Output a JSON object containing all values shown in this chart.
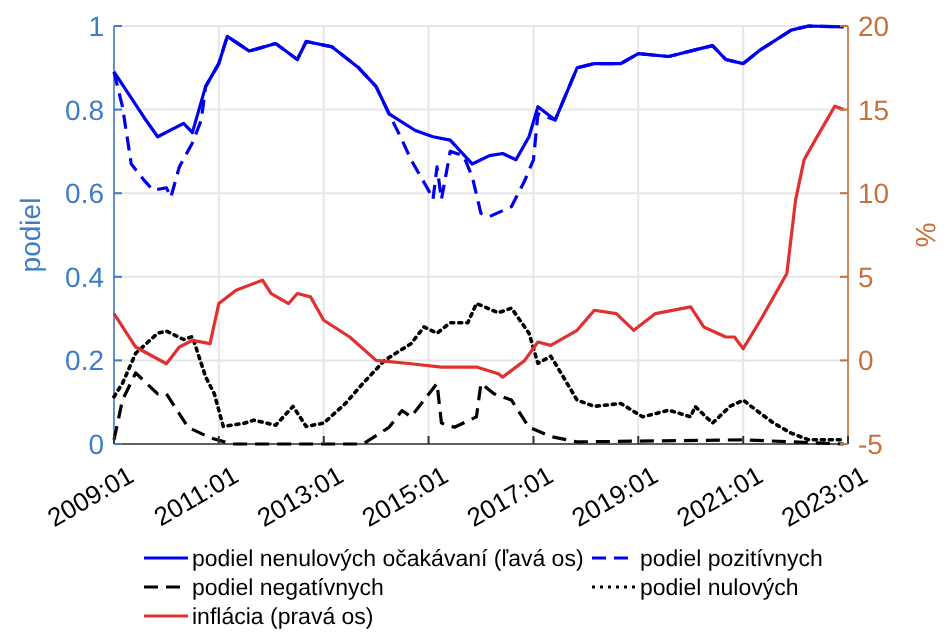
{
  "chart_data": {
    "type": "line",
    "ylabel": "podiel",
    "y2label": "%",
    "xlim": [
      "2009-01",
      "2023-01"
    ],
    "xticks": [
      {
        "value": "2009-01",
        "label": "2009:01"
      },
      {
        "value": "2011-01",
        "label": "2011:01"
      },
      {
        "value": "2013-01",
        "label": "2013:01"
      },
      {
        "value": "2015-01",
        "label": "2015:01"
      },
      {
        "value": "2017-01",
        "label": "2017:01"
      },
      {
        "value": "2019-01",
        "label": "2019:01"
      },
      {
        "value": "2021-01",
        "label": "2021:01"
      },
      {
        "value": "2023-01",
        "label": "2023:01"
      }
    ],
    "ylim": [
      0,
      1
    ],
    "yticks": [
      0,
      0.2,
      0.4,
      0.6,
      0.8,
      1
    ],
    "y2lim": [
      -5,
      20
    ],
    "y2ticks": [
      -5,
      0,
      5,
      10,
      15,
      20
    ],
    "grid": true,
    "legend": "bottom",
    "series": [
      {
        "name": "podiel nenulových očakávaní (ľavá os)",
        "color": "#0000ee",
        "line_style": "solid",
        "x": [
          "2009-01",
          "2009-08",
          "2009-11",
          "2010-05",
          "2010-07",
          "2010-10",
          "2011-01",
          "2011-03",
          "2011-08",
          "2012-02",
          "2012-07",
          "2012-09",
          "2013-03",
          "2013-09",
          "2014-01",
          "2014-04",
          "2014-10",
          "2015-02",
          "2015-06",
          "2015-11",
          "2016-03",
          "2016-06",
          "2016-09",
          "2016-12",
          "2017-02",
          "2017-06",
          "2017-11",
          "2018-03",
          "2018-09",
          "2019-01",
          "2019-08",
          "2020-02",
          "2020-06",
          "2020-09",
          "2021-01",
          "2021-05",
          "2021-12",
          "2022-04",
          "2022-12"
        ],
        "values": [
          0.89,
          0.78,
          0.735,
          0.767,
          0.745,
          0.855,
          0.91,
          0.975,
          0.94,
          0.958,
          0.92,
          0.963,
          0.95,
          0.9,
          0.855,
          0.79,
          0.75,
          0.735,
          0.727,
          0.67,
          0.69,
          0.695,
          0.68,
          0.735,
          0.807,
          0.775,
          0.9,
          0.91,
          0.91,
          0.934,
          0.927,
          0.943,
          0.953,
          0.92,
          0.91,
          0.943,
          0.99,
          1,
          0.998
        ]
      },
      {
        "name": "podiel pozitívnych",
        "color": "#0000ee",
        "line_style": "dashed",
        "x": [
          "2009-01",
          "2009-03",
          "2009-05",
          "2009-08",
          "2009-10",
          "2010-01",
          "2010-02",
          "2010-04",
          "2010-07",
          "2010-09",
          "2010-10",
          "2011-01",
          "2011-03",
          "2011-08",
          "2012-02",
          "2012-07",
          "2012-09",
          "2013-03",
          "2013-09",
          "2014-01",
          "2014-04",
          "2014-07",
          "2014-09",
          "2015-01",
          "2015-02",
          "2015-03",
          "2015-04",
          "2015-06",
          "2015-09",
          "2015-11",
          "2016-01",
          "2016-03",
          "2016-08",
          "2016-11",
          "2017-01",
          "2017-02",
          "2017-06",
          "2017-11",
          "2018-03",
          "2018-09",
          "2019-01",
          "2019-08",
          "2020-02",
          "2020-06",
          "2020-09",
          "2021-01",
          "2021-05",
          "2021-12",
          "2022-04",
          "2022-12"
        ],
        "values": [
          0.89,
          0.807,
          0.67,
          0.63,
          0.607,
          0.613,
          0.59,
          0.663,
          0.72,
          0.775,
          0.855,
          0.91,
          0.975,
          0.94,
          0.958,
          0.92,
          0.963,
          0.95,
          0.9,
          0.855,
          0.79,
          0.727,
          0.68,
          0.607,
          0.585,
          0.663,
          0.585,
          0.7,
          0.69,
          0.64,
          0.552,
          0.544,
          0.568,
          0.63,
          0.68,
          0.79,
          0.775,
          0.9,
          0.91,
          0.91,
          0.934,
          0.927,
          0.943,
          0.953,
          0.92,
          0.91,
          0.943,
          0.99,
          1,
          0.998
        ]
      },
      {
        "name": "podiel negatívnych",
        "color": "#000000",
        "line_style": "dashed",
        "x": [
          "2009-01",
          "2009-03",
          "2009-06",
          "2009-11",
          "2010-01",
          "2010-06",
          "2010-11",
          "2011-04",
          "2013-10",
          "2014-04",
          "2014-07",
          "2014-09",
          "2014-12",
          "2015-03",
          "2015-04",
          "2015-07",
          "2015-12",
          "2016-01",
          "2016-04",
          "2016-08",
          "2016-12",
          "2017-05",
          "2017-11",
          "2021-01",
          "2022-12"
        ],
        "values": [
          0.01,
          0.105,
          0.17,
          0.12,
          0.12,
          0.04,
          0.015,
          0,
          0,
          0.04,
          0.08,
          0.065,
          0.105,
          0.145,
          0.05,
          0.04,
          0.065,
          0.145,
          0.12,
          0.105,
          0.04,
          0.018,
          0.005,
          0.01,
          0
        ]
      },
      {
        "name": "podiel nulových",
        "color": "#000000",
        "line_style": "dotted",
        "x": [
          "2009-01",
          "2009-03",
          "2009-06",
          "2009-11",
          "2010-01",
          "2010-05",
          "2010-07",
          "2010-10",
          "2010-12",
          "2011-02",
          "2011-07",
          "2011-09",
          "2012-02",
          "2012-06",
          "2012-09",
          "2013-01",
          "2013-06",
          "2013-10",
          "2014-03",
          "2014-09",
          "2014-12",
          "2015-03",
          "2015-06",
          "2015-10",
          "2015-12",
          "2016-05",
          "2016-08",
          "2016-12",
          "2017-02",
          "2017-05",
          "2017-06",
          "2017-11",
          "2018-03",
          "2018-09",
          "2019-02",
          "2019-08",
          "2020-01",
          "2020-02",
          "2020-06",
          "2020-10",
          "2021-01",
          "2021-04",
          "2021-08",
          "2021-12",
          "2022-04",
          "2022-12"
        ],
        "values": [
          0.113,
          0.145,
          0.217,
          0.265,
          0.27,
          0.25,
          0.257,
          0.161,
          0.12,
          0.042,
          0.05,
          0.057,
          0.045,
          0.09,
          0.042,
          0.05,
          0.097,
          0.145,
          0.2,
          0.24,
          0.28,
          0.265,
          0.29,
          0.29,
          0.336,
          0.314,
          0.325,
          0.265,
          0.193,
          0.21,
          0.193,
          0.105,
          0.09,
          0.097,
          0.065,
          0.081,
          0.065,
          0.09,
          0.05,
          0.09,
          0.105,
          0.081,
          0.05,
          0.026,
          0.01,
          0.01
        ]
      },
      {
        "name": "inflácia (pravá os)",
        "color": "#e03030",
        "line_style": "solid",
        "axis": "y2",
        "x": [
          "2009-01",
          "2009-06",
          "2010-01",
          "2010-04",
          "2010-07",
          "2010-11",
          "2011-01",
          "2011-05",
          "2011-11",
          "2012-01",
          "2012-05",
          "2012-07",
          "2012-10",
          "2013-01",
          "2013-07",
          "2014-01",
          "2014-09",
          "2015-04",
          "2015-12",
          "2016-05",
          "2016-06",
          "2016-11",
          "2017-02",
          "2017-05",
          "2017-11",
          "2018-03",
          "2018-08",
          "2018-12",
          "2019-05",
          "2020-01",
          "2020-04",
          "2020-09",
          "2020-11",
          "2021-01",
          "2021-05",
          "2021-11",
          "2022-01",
          "2022-03",
          "2022-06",
          "2022-10",
          "2022-12"
        ],
        "values": [
          2.8,
          0.8,
          -0.2,
          0.8,
          1.2,
          1,
          3.4,
          4.2,
          4.8,
          4,
          3.4,
          4,
          3.8,
          2.4,
          1.4,
          0,
          -0.2,
          -0.4,
          -0.4,
          -0.8,
          -1,
          0,
          1.1,
          0.9,
          1.8,
          3,
          2.8,
          1.8,
          2.8,
          3.2,
          2,
          1.4,
          1.4,
          0.7,
          2.4,
          5.2,
          9.6,
          12,
          13.4,
          15.2,
          15
        ]
      }
    ]
  }
}
